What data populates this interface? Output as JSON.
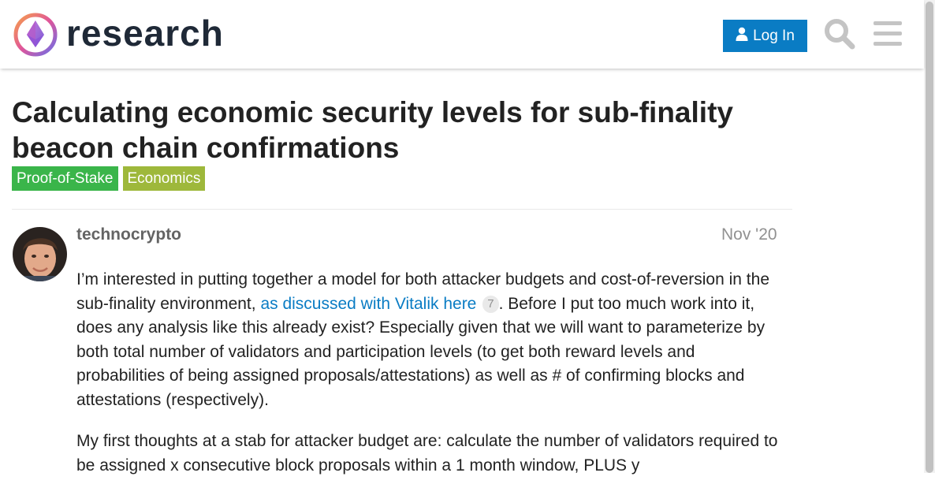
{
  "header": {
    "brand": "research",
    "login_label": "Log In"
  },
  "topic": {
    "title": "Calculating economic security levels for sub-finality beacon chain confirmations",
    "tags": [
      {
        "label": "Proof-of-Stake",
        "color": "#3ab54a"
      },
      {
        "label": "Economics",
        "color": "#9eb83b"
      }
    ]
  },
  "post": {
    "username": "technocrypto",
    "date": "Nov '20",
    "p1_before": "I’m interested in putting together a model for both attacker budgets and cost-of-reversion in the sub-finality environment, ",
    "p1_link": "as discussed with Vitalik here",
    "p1_clicks": "7",
    "p1_after": ". Before I put too much work into it, does any analysis like this already exist? Especially given that we will want to parameterize by both total number of validators and participation levels (to get both reward levels and probabilities of being assigned proposals/attestations) as well as # of confirming blocks and attestations (respectively).",
    "p2": "My first thoughts at a stab for attacker budget are: calculate the number of validators required to be assigned x consecutive block proposals within a 1 month window, PLUS y"
  },
  "icons": {
    "logo": "ethereum-research-logo-icon",
    "user": "user-icon",
    "search": "search-icon",
    "menu": "hamburger-menu-icon"
  },
  "colors": {
    "accent": "#0a7cc4",
    "icon_gray": "#c4c4c4"
  }
}
